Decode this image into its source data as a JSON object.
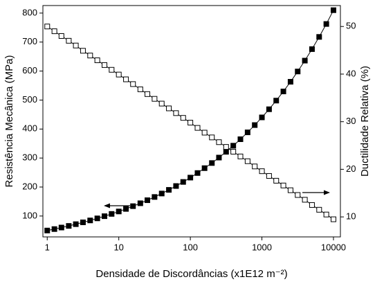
{
  "chart_data": {
    "type": "line",
    "x_label": "Densidade de Discordâncias (x1E12 m⁻²)",
    "y_label": "Resistência Mecânica (MPa)",
    "y2_label": "Ductilidade Relativa (%)",
    "x_scale": "log",
    "x": [
      1,
      1.26,
      1.58,
      2,
      2.51,
      3.16,
      3.98,
      5.01,
      6.31,
      7.94,
      10,
      12.6,
      15.8,
      20,
      25.1,
      31.6,
      39.8,
      50.1,
      63.1,
      79.4,
      100,
      126,
      158,
      200,
      251,
      316,
      398,
      501,
      631,
      794,
      1000,
      1259,
      1585,
      1995,
      2512,
      3162,
      3981,
      5012,
      6310,
      7943,
      10000
    ],
    "series": [
      {
        "color": "#000000",
        "marker": "filled-square",
        "axis": "y",
        "values": [
          50,
          55.0,
          60.3,
          65.9,
          71.9,
          78.2,
          84.8,
          91.9,
          99.4,
          107.3,
          115.7,
          124.5,
          134.0,
          144.0,
          154.5,
          165.7,
          177.6,
          190.2,
          203.5,
          217.6,
          232.5,
          248.3,
          265.1,
          282.8,
          301.6,
          321.5,
          342.6,
          364.9,
          388.6,
          413.7,
          440.2,
          468.3,
          498.1,
          529.7,
          563.1,
          598.5,
          636.0,
          675.7,
          717.8,
          762.4,
          810
        ]
      },
      {
        "color": "#000000",
        "marker": "open-square",
        "axis": "y2",
        "values": [
          50.0,
          49.0,
          48.0,
          47.0,
          46.0,
          44.9,
          43.9,
          42.9,
          41.9,
          40.9,
          39.9,
          38.9,
          37.9,
          36.8,
          35.8,
          34.8,
          33.8,
          32.8,
          31.8,
          30.8,
          29.8,
          28.7,
          27.7,
          26.7,
          25.7,
          24.7,
          23.7,
          22.7,
          21.7,
          20.6,
          19.6,
          18.6,
          17.6,
          16.6,
          15.6,
          14.6,
          13.6,
          12.5,
          11.5,
          10.5,
          9.5
        ]
      }
    ],
    "xlim": [
      0.87,
      12500
    ],
    "xticks": [
      1,
      10,
      100,
      1000,
      10000
    ],
    "ylim": [
      28,
      826
    ],
    "yticks": [
      100,
      200,
      300,
      400,
      500,
      600,
      700,
      800
    ],
    "y2lim": [
      5.8,
      54.4
    ],
    "y2ticks": [
      10,
      20,
      30,
      40,
      50
    ],
    "grid": false
  }
}
